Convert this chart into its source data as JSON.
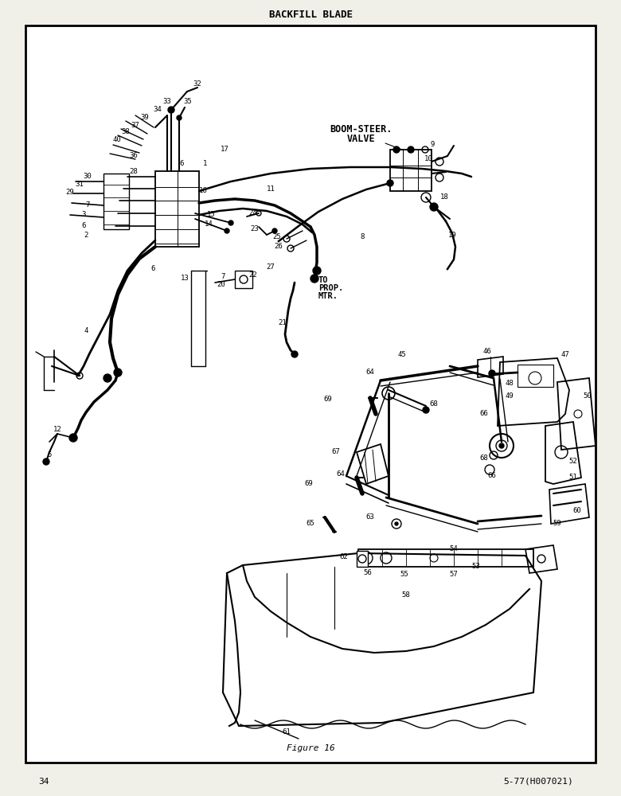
{
  "title": "BACKFILL BLADE",
  "figure_label": "Figure 16",
  "page_number": "34",
  "part_number": "5-77(H007021)",
  "bg_color": "#f0efe8",
  "border_color": "#000000",
  "boom_steer_label": [
    "BOOM-STEER.",
    "VALVE"
  ],
  "prop_mtr_label": [
    "TO",
    "PROP.",
    "MTR."
  ],
  "outer_border": [
    32,
    32,
    748,
    958
  ]
}
